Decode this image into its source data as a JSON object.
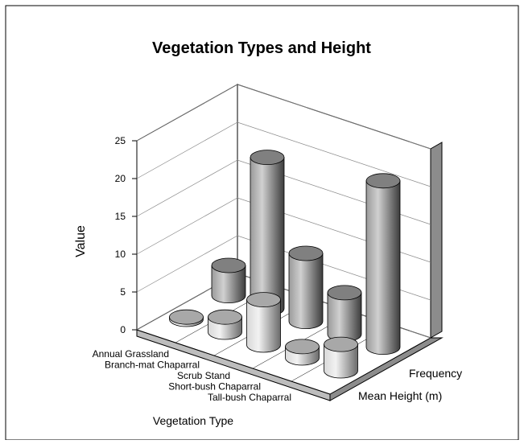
{
  "chart_data": {
    "type": "bar3d",
    "title": "Vegetation Types and Height",
    "x_label": "Vegetation Type",
    "y_label": "Value",
    "categories": [
      "Annual Grassland",
      "Branch-mat Chaparral",
      "Scrub Stand",
      "Short-bush Chaparral",
      "Tall-bush Chaparral"
    ],
    "series": [
      {
        "name": "Mean Height (m)",
        "color": "#a8a8a8",
        "values": [
          0.3,
          2,
          6,
          1.5,
          3.5
        ]
      },
      {
        "name": "Frequency",
        "color": "#808080",
        "values": [
          4,
          20,
          9,
          5.5,
          22
        ]
      }
    ],
    "ylim": [
      0,
      25
    ],
    "yticks": [
      0,
      5,
      10,
      15,
      20,
      25
    ],
    "grid": true
  }
}
